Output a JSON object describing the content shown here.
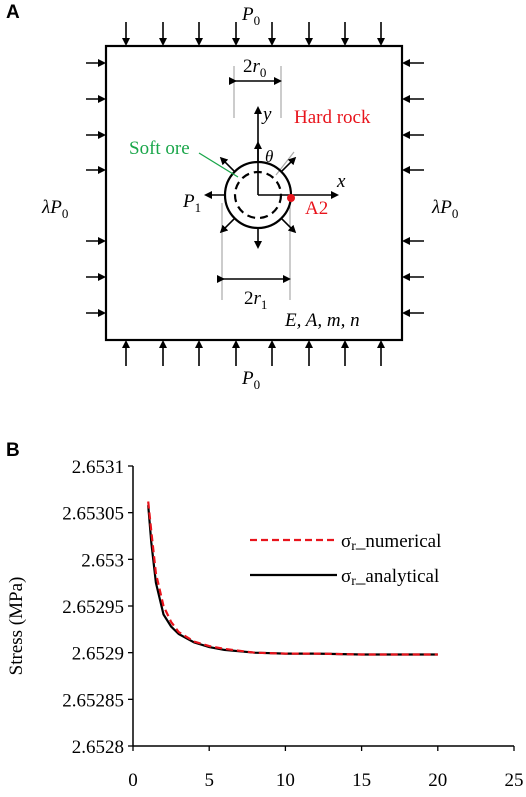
{
  "panel_a": {
    "label": "A",
    "p0_top": "P",
    "p0_bottom": "P",
    "sub0": "0",
    "lambda_left": "λP",
    "lambda_right": "λP",
    "p1": "P",
    "sub1": "1",
    "two": "2",
    "r": "r",
    "axis_y": "y",
    "axis_x": "x",
    "theta": "θ",
    "hard_rock": "Hard rock",
    "soft_ore": "Soft ore",
    "point": "A2",
    "material": "E, A, m, n",
    "colors": {
      "hard_rock": "#e8141c",
      "soft_ore": "#1aa64a",
      "point": "#e8141c"
    }
  },
  "panel_b": {
    "label": "B"
  },
  "chart_data": {
    "type": "line",
    "ylabel": "Stress (MPa)",
    "xlabel": "",
    "xlim": [
      0,
      25
    ],
    "ylim": [
      2.6528,
      2.6531
    ],
    "x_ticks": [
      "0",
      "5",
      "10",
      "15",
      "20",
      "25"
    ],
    "y_ticks": [
      "2.6528",
      "2.65285",
      "2.6529",
      "2.65295",
      "2.653",
      "2.65305",
      "2.6531"
    ],
    "grid": false,
    "legend_position": "top-right",
    "series": [
      {
        "name": "σr_numerical",
        "legend_sym": "σ",
        "legend_sub": "r",
        "legend_rest": "_numerical",
        "color": "#e8141c",
        "dash": "dashed",
        "x": [
          1,
          1.2,
          1.5,
          2,
          2.5,
          3,
          4,
          5,
          6,
          8,
          10,
          12,
          15,
          18,
          20
        ],
        "y": [
          2.653062,
          2.65303,
          2.652985,
          2.65295,
          2.652933,
          2.652922,
          2.652912,
          2.652907,
          2.652904,
          2.6529,
          2.652899,
          2.652899,
          2.652898,
          2.652898,
          2.652898
        ]
      },
      {
        "name": "σr_analytical",
        "legend_sym": "σ",
        "legend_sub": "r",
        "legend_rest": "_analytical",
        "color": "#000000",
        "dash": "solid",
        "x": [
          1,
          1.2,
          1.5,
          2,
          2.5,
          3,
          4,
          5,
          6,
          8,
          10,
          12,
          15,
          18,
          20
        ],
        "y": [
          2.653058,
          2.653018,
          2.652975,
          2.652941,
          2.652928,
          2.65292,
          2.652911,
          2.652906,
          2.652903,
          2.6529,
          2.652899,
          2.652899,
          2.652898,
          2.652898,
          2.652898
        ]
      }
    ]
  }
}
